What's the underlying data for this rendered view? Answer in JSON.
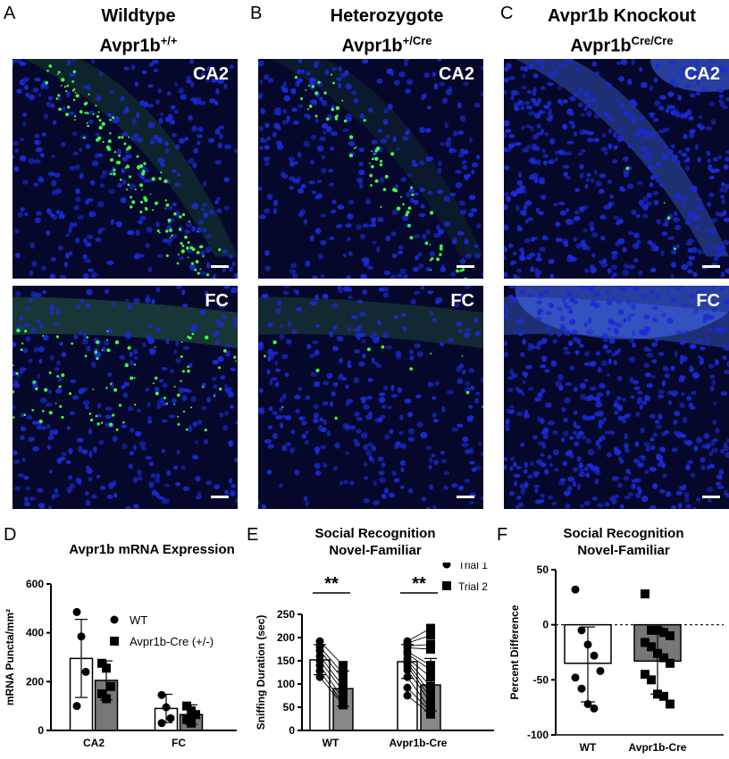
{
  "panel_letters": {
    "A": "A",
    "B": "B",
    "C": "C",
    "D": "D",
    "E": "E",
    "F": "F"
  },
  "columns": [
    {
      "title": "Wildtype",
      "genotype": "Avpr1b",
      "sup": "+/+"
    },
    {
      "title": "Heterozygote",
      "genotype": "Avpr1b",
      "sup": "+/Cre"
    },
    {
      "title": "Avpr1b Knockout",
      "genotype": "Avpr1b",
      "sup": "Cre/Cre"
    }
  ],
  "micrographs": {
    "region_top": "CA2",
    "region_bottom": "FC",
    "colors": {
      "dapi": "#1a2bd6",
      "background": "#05082a",
      "puncta": "#3cff4a"
    }
  },
  "chart_data": [
    {
      "panel": "D",
      "type": "bar",
      "title": "Avpr1b mRNA Expression",
      "ylabel": "mRNA Puncta/mm²",
      "xlabel": "",
      "ylim": [
        0,
        600
      ],
      "yticks": [
        0,
        200,
        400,
        600
      ],
      "categories": [
        "CA2",
        "FC"
      ],
      "series": [
        {
          "name": "WT",
          "values": [
            295,
            90
          ],
          "sd_upper": [
            455,
            148
          ],
          "sd_lower": [
            135,
            32
          ],
          "points": [
            [
              485,
              385,
              240,
              100
            ],
            [
              145,
              95,
              50,
              30
            ]
          ],
          "fill": "#ffffff",
          "marker": "circle"
        },
        {
          "name": "Avpr1b-Cre (+/-)",
          "values": [
            205,
            65
          ],
          "sd_upper": [
            285,
            105
          ],
          "sd_lower": [
            125,
            25
          ],
          "points": [
            [
              275,
              255,
              180,
              150,
              130
            ],
            [
              100,
              80,
              65,
              45,
              30
            ]
          ],
          "fill": "#777777",
          "marker": "square"
        }
      ],
      "legend": "top-right"
    },
    {
      "panel": "E",
      "type": "bar",
      "title": "Social Recognition\nNovel-Familiar",
      "ylabel": "Sniffing Duration (sec)",
      "xlabel": "",
      "ylim": [
        0,
        250
      ],
      "yticks": [
        0,
        50,
        100,
        150,
        200,
        250
      ],
      "categories": [
        "WT",
        "Avpr1b-Cre"
      ],
      "series": [
        {
          "name": "Trial 1",
          "values": [
            152,
            148
          ],
          "sd_upper": [
            185,
            185
          ],
          "sd_lower": [
            120,
            112
          ],
          "marker": "circle",
          "fill": "#ffffff",
          "points": [
            [
              192,
              180,
              172,
              160,
              150,
              140,
              128,
              115
            ],
            [
              192,
              188,
              182,
              178,
              170,
              165,
              155,
              150,
              145,
              138,
              130,
              115,
              92,
              75
            ]
          ]
        },
        {
          "name": "Trial 2",
          "values": [
            90,
            98
          ],
          "sd_upper": [
            128,
            155
          ],
          "sd_lower": [
            52,
            42
          ],
          "marker": "square",
          "fill": "#888888",
          "points": [
            [
              140,
              122,
              110,
              95,
              85,
              68,
              58,
              55
            ],
            [
              220,
              205,
              185,
              175,
              140,
              130,
              115,
              95,
              80,
              70,
              60,
              45,
              40,
              35
            ]
          ]
        }
      ],
      "significance": [
        "**",
        "**"
      ],
      "legend": "top-right"
    },
    {
      "panel": "F",
      "type": "bar",
      "title": "Social Recognition\nNovel-Familiar",
      "ylabel": "Percent Difference",
      "xlabel": "",
      "ylim": [
        -100,
        50
      ],
      "yticks": [
        -100,
        -50,
        0,
        50
      ],
      "categories": [
        "WT",
        "Avpr1b-Cre"
      ],
      "series": [
        {
          "name": "",
          "values": [
            -35,
            -33
          ],
          "sd_upper": [
            -2,
            -3
          ],
          "sd_lower": [
            -70,
            -63
          ],
          "fill": [
            "#ffffff",
            "#777777"
          ],
          "points": [
            [
              32,
              -5,
              -18,
              -28,
              -42,
              -48,
              -58,
              -72,
              -76
            ],
            [
              28,
              -5,
              -5,
              -7,
              -10,
              -16,
              -20,
              -26,
              -30,
              -35,
              -45,
              -50,
              -63,
              -65,
              -72
            ]
          ]
        }
      ],
      "legend": "none"
    }
  ]
}
